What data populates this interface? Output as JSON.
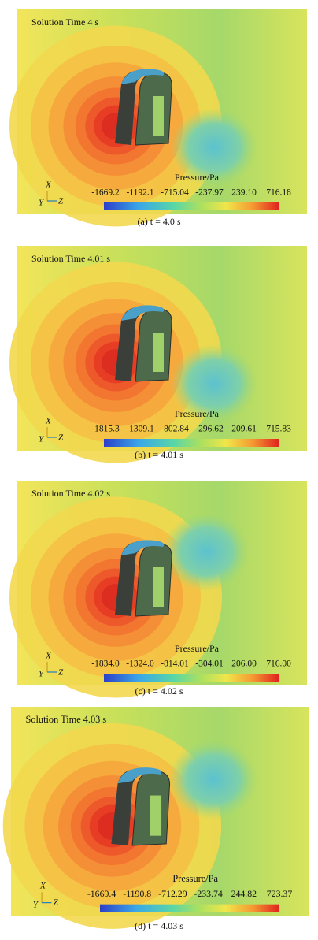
{
  "panels": [
    {
      "title": "Solution Time 4 s",
      "legend_title": "Pressure/Pa",
      "ticks": [
        "-1669.2",
        "-1192.1",
        "-715.04",
        "-237.97",
        "239.10",
        "716.18"
      ],
      "axes": [
        "X",
        "Y",
        "Z"
      ],
      "caption": "(a) t = 4.0 s"
    },
    {
      "title": "Solution Time 4.01 s",
      "legend_title": "Pressure/Pa",
      "ticks": [
        "-1815.3",
        "-1309.1",
        "-802.84",
        "-296.62",
        "209.61",
        "715.83"
      ],
      "axes": [
        "X",
        "Y",
        "Z"
      ],
      "caption": "(b) t = 4.01 s"
    },
    {
      "title": "Solution Time 4.02 s",
      "legend_title": "Pressure/Pa",
      "ticks": [
        "-1834.0",
        "-1324.0",
        "-814.01",
        "-304.01",
        "206.00",
        "716.00"
      ],
      "axes": [
        "X",
        "Y",
        "Z"
      ],
      "caption": "(c) t = 4.02 s"
    },
    {
      "title": "Solution Time 4.03 s",
      "legend_title": "Pressure/Pa",
      "ticks": [
        "-1669.4",
        "-1190.8",
        "-712.29",
        "-233.74",
        "244.82",
        "723.37"
      ],
      "axes": [
        "X",
        "Y",
        "Z"
      ],
      "caption": "(d) t = 4.03 s"
    }
  ]
}
